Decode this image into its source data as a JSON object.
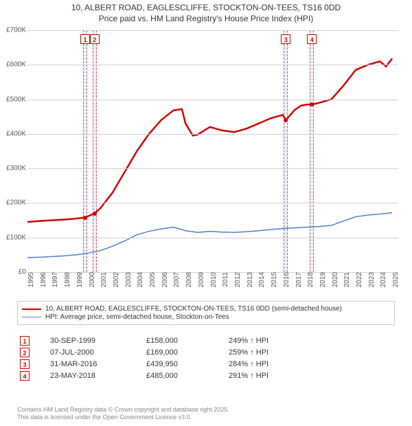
{
  "title": "10, ALBERT ROAD, EAGLESCLIFFE, STOCKTON-ON-TEES, TS16 0DD",
  "subtitle": "Price paid vs. HM Land Registry's House Price Index (HPI)",
  "chart": {
    "type": "line",
    "background_color": "#ffffff",
    "grid_color": "#d0d0d0",
    "x_years": [
      1995,
      1996,
      1997,
      1998,
      1999,
      2000,
      2001,
      2002,
      2003,
      2004,
      2005,
      2006,
      2007,
      2008,
      2009,
      2010,
      2011,
      2012,
      2013,
      2014,
      2015,
      2016,
      2017,
      2018,
      2019,
      2020,
      2021,
      2022,
      2023,
      2024,
      2025
    ],
    "xlim": [
      1995,
      2025.5
    ],
    "ylim": [
      0,
      700000
    ],
    "ytick_step": 100000,
    "yticks": [
      "£0",
      "£100K",
      "£200K",
      "£300K",
      "£400K",
      "£500K",
      "£600K",
      "£700K"
    ],
    "label_fontsize": 10,
    "series": [
      {
        "name": "10, ALBERT ROAD, EAGLESCLIFFE, STOCKTON-ON-TEES, TS16 0DD (semi-detached house)",
        "color": "#d00000",
        "line_width": 2.5,
        "data": [
          [
            1995,
            145000
          ],
          [
            1996,
            148000
          ],
          [
            1997,
            150000
          ],
          [
            1998,
            152000
          ],
          [
            1999,
            155000
          ],
          [
            1999.75,
            158000
          ],
          [
            2000,
            162000
          ],
          [
            2000.5,
            169000
          ],
          [
            2001,
            185000
          ],
          [
            2002,
            230000
          ],
          [
            2003,
            290000
          ],
          [
            2004,
            350000
          ],
          [
            2005,
            400000
          ],
          [
            2006,
            440000
          ],
          [
            2007,
            468000
          ],
          [
            2007.7,
            472000
          ],
          [
            2008,
            430000
          ],
          [
            2008.6,
            395000
          ],
          [
            2009,
            398000
          ],
          [
            2010,
            420000
          ],
          [
            2011,
            410000
          ],
          [
            2012,
            405000
          ],
          [
            2013,
            415000
          ],
          [
            2014,
            430000
          ],
          [
            2015,
            445000
          ],
          [
            2016,
            455000
          ],
          [
            2016.25,
            439950
          ],
          [
            2017,
            470000
          ],
          [
            2017.5,
            482000
          ],
          [
            2018,
            485000
          ],
          [
            2018.4,
            485000
          ],
          [
            2019,
            490000
          ],
          [
            2020,
            500000
          ],
          [
            2021,
            540000
          ],
          [
            2022,
            585000
          ],
          [
            2023,
            600000
          ],
          [
            2024,
            610000
          ],
          [
            2024.5,
            595000
          ],
          [
            2025,
            618000
          ]
        ]
      },
      {
        "name": "HPI: Average price, semi-detached house, Stockton-on-Tees",
        "color": "#5080c0",
        "line_width": 1.5,
        "data": [
          [
            1995,
            42000
          ],
          [
            1996,
            43000
          ],
          [
            1997,
            45000
          ],
          [
            1998,
            47000
          ],
          [
            1999,
            50000
          ],
          [
            2000,
            55000
          ],
          [
            2001,
            62000
          ],
          [
            2002,
            75000
          ],
          [
            2003,
            90000
          ],
          [
            2004,
            108000
          ],
          [
            2005,
            118000
          ],
          [
            2006,
            125000
          ],
          [
            2007,
            130000
          ],
          [
            2008,
            120000
          ],
          [
            2009,
            115000
          ],
          [
            2010,
            118000
          ],
          [
            2011,
            116000
          ],
          [
            2012,
            115000
          ],
          [
            2013,
            117000
          ],
          [
            2014,
            120000
          ],
          [
            2015,
            123000
          ],
          [
            2016,
            126000
          ],
          [
            2017,
            128000
          ],
          [
            2018,
            130000
          ],
          [
            2019,
            132000
          ],
          [
            2020,
            135000
          ],
          [
            2021,
            148000
          ],
          [
            2022,
            160000
          ],
          [
            2023,
            165000
          ],
          [
            2024,
            168000
          ],
          [
            2025,
            172000
          ]
        ]
      }
    ],
    "markers": [
      {
        "n": "1",
        "x": 1999.75,
        "y": 158000,
        "color": "#d00000"
      },
      {
        "n": "2",
        "x": 2000.52,
        "y": 169000,
        "color": "#d00000"
      },
      {
        "n": "3",
        "x": 2016.25,
        "y": 439950,
        "color": "#d00000"
      },
      {
        "n": "4",
        "x": 2018.4,
        "y": 485000,
        "color": "#d00000"
      }
    ],
    "marker_box_color": "#d00000",
    "band_fill": "rgba(150,180,220,0.2)",
    "band_dash_color": "#d05050"
  },
  "legend": {
    "items": [
      {
        "color": "#d00000",
        "width": 2.5,
        "label": "10, ALBERT ROAD, EAGLESCLIFFE, STOCKTON-ON-TEES, TS16 0DD (semi-detached house)"
      },
      {
        "color": "#5080c0",
        "width": 1.5,
        "label": "HPI: Average price, semi-detached house, Stockton-on-Tees"
      }
    ]
  },
  "sales": [
    {
      "n": "1",
      "date": "30-SEP-1999",
      "price": "£158,000",
      "hpi": "249% ↑ HPI"
    },
    {
      "n": "2",
      "date": "07-JUL-2000",
      "price": "£169,000",
      "hpi": "259% ↑ HPI"
    },
    {
      "n": "3",
      "date": "31-MAR-2016",
      "price": "£439,950",
      "hpi": "284% ↑ HPI"
    },
    {
      "n": "4",
      "date": "23-MAY-2018",
      "price": "£485,000",
      "hpi": "291% ↑ HPI"
    }
  ],
  "footer_l1": "Contains HM Land Registry data © Crown copyright and database right 2025.",
  "footer_l2": "This data is licensed under the Open Government Licence v3.0."
}
